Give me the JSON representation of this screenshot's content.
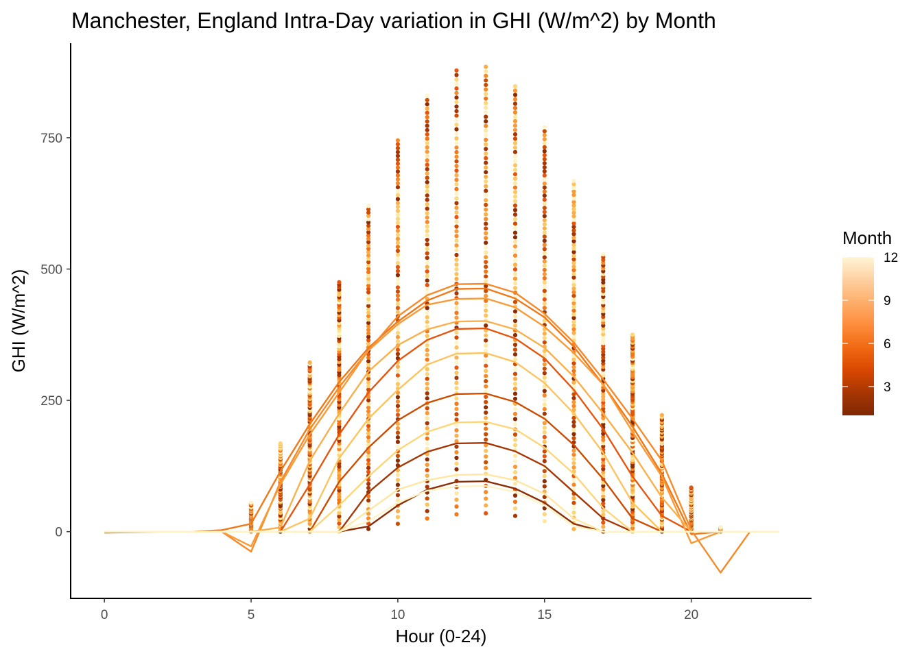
{
  "chart_data": {
    "type": "line",
    "title": "Manchester, England Intra-Day variation in GHI (W/m^2) by Month",
    "xlabel": "Hour (0-24)",
    "ylabel": "GHI (W/m^2)",
    "xlim": [
      -1.15,
      24.1
    ],
    "ylim": [
      -127,
      930
    ],
    "x_ticks": [
      0,
      5,
      10,
      15,
      20
    ],
    "y_ticks": [
      0,
      250,
      500,
      750
    ],
    "grid": false,
    "legend": {
      "title": "Month",
      "placement": "right",
      "type": "colorbar",
      "range": [
        1,
        12
      ],
      "ticks": [
        3,
        6,
        9,
        12
      ],
      "colors": [
        "#7f2704",
        "#a63603",
        "#d94801",
        "#f16913",
        "#fd8d3c",
        "#fdae6b",
        "#fdd0a2",
        "#fff5d6"
      ]
    },
    "month_colors": {
      "1": "#8c2d04",
      "2": "#a63603",
      "3": "#cc4c02",
      "4": "#e6550d",
      "5": "#f07818",
      "6": "#f68a2a",
      "7": "#f99a36",
      "8": "#fbaf4a",
      "9": "#fdc35e",
      "10": "#fed67a",
      "11": "#ffe7a2",
      "12": "#fff3c8"
    },
    "hours": [
      0,
      1,
      2,
      3,
      4,
      5,
      6,
      7,
      8,
      9,
      10,
      11,
      12,
      13,
      14,
      15,
      16,
      17,
      18,
      19,
      20,
      21,
      22,
      23
    ],
    "series": [
      {
        "month": 1,
        "values": [
          0,
          0,
          0,
          0,
          0,
          0,
          0,
          0,
          0,
          10,
          50,
          80,
          95,
          96,
          82,
          55,
          15,
          0,
          0,
          0,
          0,
          0,
          0,
          0
        ]
      },
      {
        "month": 2,
        "values": [
          0,
          0,
          0,
          0,
          0,
          0,
          0,
          0,
          0,
          75,
          122,
          152,
          168,
          169,
          153,
          125,
          75,
          25,
          0,
          0,
          0,
          0,
          0,
          0
        ]
      },
      {
        "month": 3,
        "values": [
          0,
          0,
          0,
          0,
          0,
          0,
          0,
          0,
          95,
          160,
          212,
          245,
          262,
          263,
          247,
          215,
          165,
          100,
          25,
          0,
          0,
          0,
          0,
          0
        ]
      },
      {
        "month": 4,
        "values": [
          0,
          0,
          0,
          0,
          0,
          0,
          0,
          90,
          185,
          265,
          325,
          365,
          386,
          387,
          368,
          330,
          270,
          195,
          105,
          30,
          0,
          0,
          0,
          0
        ]
      },
      {
        "month": 5,
        "values": [
          -2,
          -1,
          0,
          0,
          3,
          15,
          115,
          205,
          285,
          350,
          400,
          440,
          462,
          463,
          444,
          408,
          352,
          280,
          200,
          110,
          -5,
          0,
          0,
          0
        ]
      },
      {
        "month": 6,
        "values": [
          0,
          0,
          0,
          0,
          0,
          -38,
          95,
          195,
          275,
          345,
          410,
          450,
          471,
          472,
          455,
          415,
          360,
          290,
          215,
          135,
          3,
          -78,
          0,
          0
        ]
      },
      {
        "month": 7,
        "values": [
          0,
          0,
          0,
          0,
          0,
          -28,
          90,
          185,
          265,
          345,
          395,
          432,
          443,
          444,
          427,
          390,
          340,
          280,
          190,
          105,
          -22,
          0,
          0,
          0
        ]
      },
      {
        "month": 8,
        "values": [
          0,
          0,
          0,
          0,
          0,
          0,
          8,
          135,
          225,
          305,
          355,
          385,
          400,
          401,
          385,
          350,
          295,
          225,
          150,
          65,
          0,
          0,
          0,
          0
        ]
      },
      {
        "month": 9,
        "values": [
          0,
          0,
          0,
          0,
          0,
          0,
          0,
          25,
          140,
          215,
          270,
          318,
          339,
          340,
          323,
          283,
          225,
          150,
          55,
          0,
          0,
          0,
          0,
          0
        ]
      },
      {
        "month": 10,
        "values": [
          0,
          0,
          0,
          0,
          0,
          0,
          0,
          0,
          50,
          105,
          155,
          190,
          208,
          209,
          195,
          160,
          110,
          45,
          0,
          0,
          0,
          0,
          0,
          0
        ]
      },
      {
        "month": 11,
        "values": [
          0,
          0,
          0,
          0,
          0,
          0,
          0,
          0,
          0,
          40,
          80,
          98,
          108,
          109,
          98,
          72,
          25,
          0,
          0,
          0,
          0,
          0,
          0,
          0
        ]
      },
      {
        "month": 12,
        "values": [
          0,
          0,
          0,
          0,
          0,
          0,
          0,
          0,
          0,
          20,
          55,
          78,
          86,
          87,
          76,
          50,
          10,
          0,
          0,
          0,
          0,
          0,
          0,
          0
        ]
      }
    ],
    "scatter_ranges": [
      {
        "hour": 5,
        "min": 0,
        "max": 55
      },
      {
        "hour": 6,
        "min": 0,
        "max": 168
      },
      {
        "hour": 7,
        "min": 0,
        "max": 322
      },
      {
        "hour": 8,
        "min": 0,
        "max": 475
      },
      {
        "hour": 9,
        "min": 5,
        "max": 620
      },
      {
        "hour": 10,
        "min": 15,
        "max": 745
      },
      {
        "hour": 11,
        "min": 25,
        "max": 830
      },
      {
        "hour": 12,
        "min": 33,
        "max": 878
      },
      {
        "hour": 13,
        "min": 35,
        "max": 885
      },
      {
        "hour": 14,
        "min": 30,
        "max": 848
      },
      {
        "hour": 15,
        "min": 20,
        "max": 770
      },
      {
        "hour": 16,
        "min": 5,
        "max": 668
      },
      {
        "hour": 17,
        "min": 0,
        "max": 528
      },
      {
        "hour": 18,
        "min": 0,
        "max": 375
      },
      {
        "hour": 19,
        "min": 0,
        "max": 222
      },
      {
        "hour": 20,
        "min": 0,
        "max": 84
      },
      {
        "hour": 21,
        "min": 0,
        "max": 8
      }
    ]
  }
}
